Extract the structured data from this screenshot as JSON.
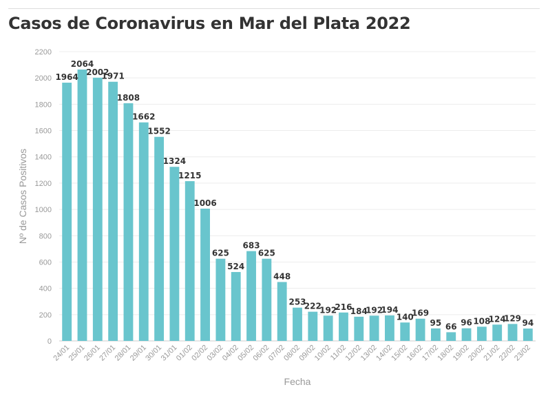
{
  "title": "Casos de Coronavirus en Mar del Plata 2022",
  "chart_data": {
    "type": "bar",
    "title": "Casos de Coronavirus en Mar del Plata 2022",
    "xlabel": "Fecha",
    "ylabel": "Nº de Casos Positivos",
    "ylim": [
      0,
      2200
    ],
    "yticks": [
      0,
      200,
      400,
      600,
      800,
      1000,
      1200,
      1400,
      1600,
      1800,
      2000,
      2200
    ],
    "grid": true,
    "color": "#69c5cd",
    "categories": [
      "24/01",
      "25/01",
      "26/01",
      "27/01",
      "28/01",
      "29/01",
      "30/01",
      "31/01",
      "01/02",
      "02/02",
      "03/02",
      "04/02",
      "05/02",
      "06/02",
      "07/02",
      "08/02",
      "09/02",
      "10/02",
      "11/02",
      "12/02",
      "13/02",
      "14/02",
      "15/02",
      "16/02",
      "17/02",
      "18/02",
      "19/02",
      "20/02",
      "21/02",
      "22/02",
      "23/02"
    ],
    "values": [
      1964,
      2064,
      2002,
      1971,
      1808,
      1662,
      1552,
      1324,
      1215,
      1006,
      625,
      524,
      683,
      625,
      448,
      253,
      222,
      192,
      216,
      184,
      192,
      194,
      140,
      169,
      95,
      66,
      96,
      108,
      124,
      129,
      94
    ]
  }
}
